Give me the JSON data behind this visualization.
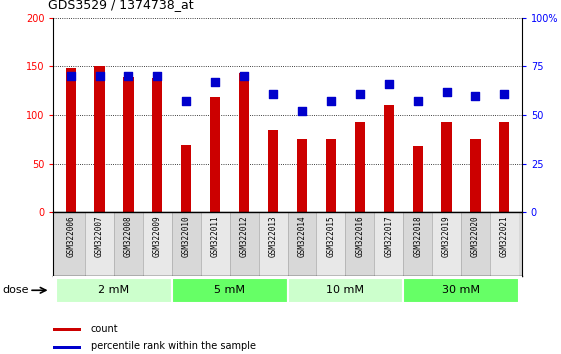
{
  "title": "GDS3529 / 1374738_at",
  "samples": [
    "GSM322006",
    "GSM322007",
    "GSM322008",
    "GSM322009",
    "GSM322010",
    "GSM322011",
    "GSM322012",
    "GSM322013",
    "GSM322014",
    "GSM322015",
    "GSM322016",
    "GSM322017",
    "GSM322018",
    "GSM322019",
    "GSM322020",
    "GSM322021"
  ],
  "counts": [
    148,
    150,
    139,
    138,
    69,
    119,
    143,
    85,
    75,
    75,
    93,
    110,
    68,
    93,
    75,
    93
  ],
  "percentiles": [
    70,
    70,
    70,
    70,
    57,
    67,
    70,
    61,
    52,
    57,
    61,
    66,
    57,
    62,
    60,
    61
  ],
  "dose_groups": [
    {
      "label": "2 mM",
      "start": 0,
      "end": 4,
      "color": "#ccffcc"
    },
    {
      "label": "5 mM",
      "start": 4,
      "end": 8,
      "color": "#66ff66"
    },
    {
      "label": "10 mM",
      "start": 8,
      "end": 12,
      "color": "#ccffcc"
    },
    {
      "label": "30 mM",
      "start": 12,
      "end": 16,
      "color": "#66ff66"
    }
  ],
  "bar_color": "#cc0000",
  "dot_color": "#0000cc",
  "left_ylim": [
    0,
    200
  ],
  "left_yticks": [
    0,
    50,
    100,
    150,
    200
  ],
  "right_ylim": [
    0,
    100
  ],
  "right_yticks": [
    0,
    25,
    50,
    75,
    100
  ],
  "right_yticklabels": [
    "0",
    "25",
    "50",
    "75",
    "100%"
  ],
  "bg_plot": "#ffffff",
  "bg_xlabels_odd": "#d8d8d8",
  "bg_xlabels_even": "#e8e8e8",
  "legend_count_label": "count",
  "legend_percentile_label": "percentile rank within the sample",
  "dose_label": "dose",
  "bar_width": 0.35,
  "dot_size": 30
}
